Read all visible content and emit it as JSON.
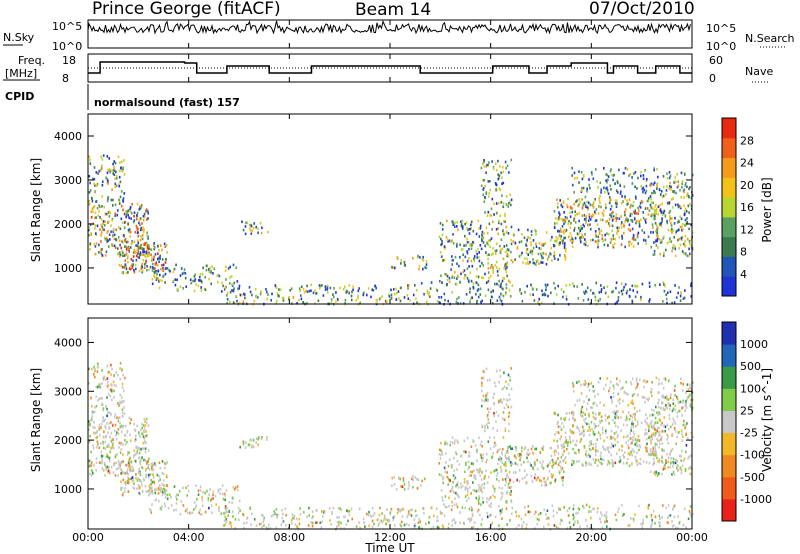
{
  "header": {
    "station": "Prince George (fitACF)",
    "beam": "Beam 14",
    "date": "07/Oct/2010"
  },
  "panels": {
    "nsky": {
      "label": "N.Sky",
      "ticks": [
        "10^5",
        "10^0"
      ],
      "right_label": "N.Search",
      "right_ticks": [
        "10^5",
        "10^0"
      ]
    },
    "freq": {
      "label_top": "Freq.",
      "label_bottom": "[MHz]",
      "ticks": [
        "18",
        "8"
      ],
      "right_label": "Nave",
      "right_ticks": [
        "60",
        "0"
      ],
      "yrange": [
        8,
        18
      ]
    },
    "cpid": {
      "label": "CPID",
      "text": "normalsound (fast) 157"
    }
  },
  "colors": {
    "power": [
      "#1f34d6",
      "#2255b8",
      "#3a7a4e",
      "#5aa060",
      "#b7d632",
      "#f3c21a",
      "#f59a1a",
      "#f0601a",
      "#e82a10"
    ],
    "velocity": [
      "#e8221a",
      "#f05a1a",
      "#f08a20",
      "#f3b82a",
      "#c8c8c8",
      "#7fcb4a",
      "#3a9a48",
      "#2266b8",
      "#1f2fb0"
    ]
  },
  "chart_data": [
    {
      "type": "heatmap",
      "name": "power",
      "ylabel": "Slant Range [km]",
      "yticks": [
        "4000",
        "3000",
        "2000",
        "1000"
      ],
      "ylim": [
        180,
        4500
      ],
      "colorbar_label": "Power [dB]",
      "colorbar_ticks": [
        "28",
        "24",
        "20",
        "16",
        "12",
        "8",
        "4"
      ],
      "clim": [
        0,
        30
      ]
    },
    {
      "type": "heatmap",
      "name": "velocity",
      "ylabel": "Slant Range [km]",
      "yticks": [
        "4000",
        "3000",
        "2000",
        "1000"
      ],
      "ylim": [
        180,
        4500
      ],
      "colorbar_label": "Velocity [m s^-1]",
      "colorbar_ticks": [
        "1000",
        "500",
        "100",
        "25",
        "-25",
        "-100",
        "-500",
        "-1000"
      ]
    }
  ],
  "xaxis": {
    "label": "Time UT",
    "ticks": [
      "00:00",
      "04:00",
      "08:00",
      "12:00",
      "16:00",
      "20:00",
      "00:00"
    ]
  }
}
